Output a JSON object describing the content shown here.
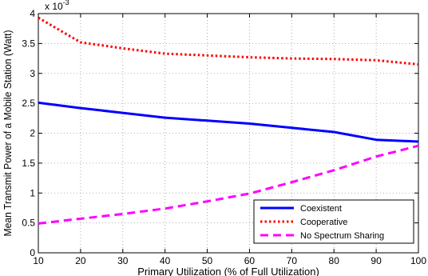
{
  "chart_data": {
    "type": "line",
    "title": "",
    "xlabel": "Primary Utilization (% of Full Utilization)",
    "ylabel": "Mean Transmit Power of a Mobile Station (Watt)",
    "y_exponent_label": "x 10",
    "y_exponent": "-3",
    "xlim": [
      10,
      100
    ],
    "ylim": [
      0,
      4
    ],
    "xticks": [
      10,
      20,
      30,
      40,
      50,
      60,
      70,
      80,
      90,
      100
    ],
    "yticks": [
      0,
      0.5,
      1,
      1.5,
      2,
      2.5,
      3,
      3.5,
      4
    ],
    "grid": true,
    "legend_position": "bottom-right",
    "x": [
      10,
      20,
      30,
      40,
      50,
      60,
      70,
      80,
      90,
      100
    ],
    "series": [
      {
        "name": "Coexistent",
        "color": "#0000ff",
        "style": "solid",
        "values": [
          2.51,
          2.42,
          2.34,
          2.26,
          2.21,
          2.16,
          2.09,
          2.02,
          1.89,
          1.86
        ]
      },
      {
        "name": "Cooperative",
        "color": "#ff0000",
        "style": "dotted",
        "values": [
          3.93,
          3.52,
          3.42,
          3.33,
          3.3,
          3.27,
          3.25,
          3.24,
          3.22,
          3.15
        ]
      },
      {
        "name": "No Spectrum Sharing",
        "color": "#ff00ff",
        "style": "dashed",
        "values": [
          0.49,
          0.57,
          0.65,
          0.74,
          0.86,
          0.99,
          1.18,
          1.38,
          1.61,
          1.79
        ]
      }
    ]
  }
}
